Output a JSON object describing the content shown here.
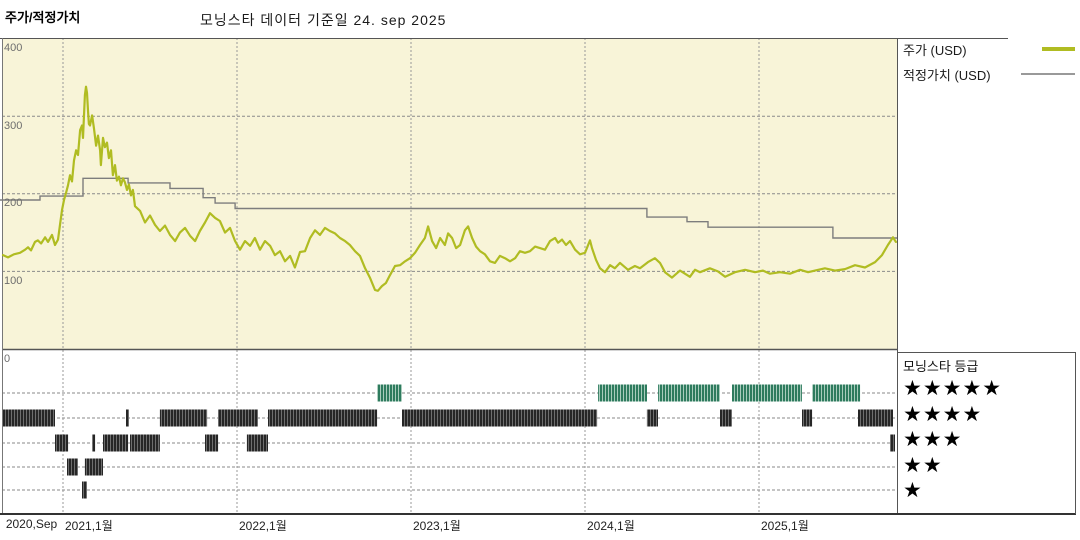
{
  "header": {
    "section_label": "주가/적정가치",
    "title": "모닝스타 데이터 기준일 24. sep 2025"
  },
  "legend": {
    "price_label": "주가 (USD)",
    "fair_value_label": "적정가치 (USD)"
  },
  "rating_legend": {
    "title": "모닝스타 등급",
    "rows": [
      {
        "stars_text": "★★★★★",
        "value": 5
      },
      {
        "stars_text": "★★★★",
        "value": 4
      },
      {
        "stars_text": "★★★",
        "value": 3
      },
      {
        "stars_text": "★★",
        "value": 2
      },
      {
        "stars_text": "★",
        "value": 1
      }
    ]
  },
  "colors": {
    "chart_bg": "#f8f4d8",
    "price": "#b0bc22",
    "fair_value": "#7d7d7d",
    "rating_green": "#2e7b5e",
    "rating_green_stripe": "#a9ccbc",
    "rating_dark": "#262626",
    "rating_dark_stripe": "#6e6e6e",
    "grid": "#999999",
    "border": "#555555"
  },
  "chart_data": {
    "type": "line",
    "title": "모닝스타 데이터 기준일 24. sep 2025",
    "ylabel": "USD",
    "x_axis": {
      "range": [
        2020.64,
        2025.8
      ],
      "ticks": [
        {
          "t": 2020.66,
          "label": "2020,Sep",
          "grid": false
        },
        {
          "t": 2021,
          "label": "2021,1월",
          "grid": true
        },
        {
          "t": 2022,
          "label": "2022,1월",
          "grid": true
        },
        {
          "t": 2023,
          "label": "2023,1월",
          "grid": true
        },
        {
          "t": 2024,
          "label": "2024,1월",
          "grid": true
        },
        {
          "t": 2025,
          "label": "2025,1월",
          "grid": true
        }
      ]
    },
    "y_axis": {
      "range": [
        0,
        400
      ],
      "ticks": [
        400,
        300,
        200,
        100,
        0
      ]
    },
    "series": [
      {
        "name": "주가 (USD)",
        "type": "line",
        "points": [
          [
            2020.655,
            121
          ],
          [
            2020.684,
            118
          ],
          [
            2020.718,
            122
          ],
          [
            2020.753,
            124
          ],
          [
            2020.782,
            128
          ],
          [
            2020.799,
            131
          ],
          [
            2020.816,
            127
          ],
          [
            2020.839,
            138
          ],
          [
            2020.856,
            140
          ],
          [
            2020.874,
            136
          ],
          [
            2020.897,
            144
          ],
          [
            2020.914,
            138
          ],
          [
            2020.937,
            147
          ],
          [
            2020.954,
            134
          ],
          [
            2020.971,
            141
          ],
          [
            2020.983,
            160
          ],
          [
            2020.994,
            179
          ],
          [
            2021.006,
            192
          ],
          [
            2021.017,
            201
          ],
          [
            2021.029,
            211
          ],
          [
            2021.04,
            224
          ],
          [
            2021.052,
            216
          ],
          [
            2021.063,
            243
          ],
          [
            2021.075,
            256
          ],
          [
            2021.086,
            250
          ],
          [
            2021.098,
            282
          ],
          [
            2021.109,
            288
          ],
          [
            2021.115,
            272
          ],
          [
            2021.126,
            327
          ],
          [
            2021.132,
            338
          ],
          [
            2021.138,
            330
          ],
          [
            2021.144,
            305
          ],
          [
            2021.149,
            290
          ],
          [
            2021.155,
            288
          ],
          [
            2021.167,
            301
          ],
          [
            2021.178,
            284
          ],
          [
            2021.19,
            262
          ],
          [
            2021.201,
            275
          ],
          [
            2021.213,
            256
          ],
          [
            2021.218,
            237
          ],
          [
            2021.23,
            272
          ],
          [
            2021.241,
            260
          ],
          [
            2021.253,
            266
          ],
          [
            2021.264,
            246
          ],
          [
            2021.276,
            256
          ],
          [
            2021.287,
            224
          ],
          [
            2021.299,
            237
          ],
          [
            2021.31,
            217
          ],
          [
            2021.322,
            222
          ],
          [
            2021.333,
            211
          ],
          [
            2021.345,
            220
          ],
          [
            2021.356,
            215
          ],
          [
            2021.368,
            205
          ],
          [
            2021.379,
            212
          ],
          [
            2021.391,
            198
          ],
          [
            2021.402,
            205
          ],
          [
            2021.414,
            184
          ],
          [
            2021.443,
            178
          ],
          [
            2021.471,
            163
          ],
          [
            2021.5,
            172
          ],
          [
            2021.529,
            160
          ],
          [
            2021.557,
            152
          ],
          [
            2021.586,
            159
          ],
          [
            2021.615,
            147
          ],
          [
            2021.644,
            139
          ],
          [
            2021.672,
            150
          ],
          [
            2021.701,
            156
          ],
          [
            2021.73,
            146
          ],
          [
            2021.759,
            139
          ],
          [
            2021.787,
            152
          ],
          [
            2021.816,
            163
          ],
          [
            2021.845,
            175
          ],
          [
            2021.874,
            169
          ],
          [
            2021.902,
            165
          ],
          [
            2021.931,
            150
          ],
          [
            2021.96,
            156
          ],
          [
            2021.989,
            139
          ],
          [
            2022.017,
            128
          ],
          [
            2022.046,
            139
          ],
          [
            2022.075,
            133
          ],
          [
            2022.103,
            143
          ],
          [
            2022.132,
            128
          ],
          [
            2022.161,
            139
          ],
          [
            2022.19,
            133
          ],
          [
            2022.218,
            121
          ],
          [
            2022.247,
            126
          ],
          [
            2022.276,
            113
          ],
          [
            2022.305,
            120
          ],
          [
            2022.333,
            105
          ],
          [
            2022.362,
            125
          ],
          [
            2022.391,
            126
          ],
          [
            2022.42,
            143
          ],
          [
            2022.448,
            153
          ],
          [
            2022.477,
            147
          ],
          [
            2022.506,
            156
          ],
          [
            2022.534,
            152
          ],
          [
            2022.563,
            149
          ],
          [
            2022.592,
            143
          ],
          [
            2022.621,
            139
          ],
          [
            2022.649,
            134
          ],
          [
            2022.678,
            126
          ],
          [
            2022.707,
            120
          ],
          [
            2022.736,
            104
          ],
          [
            2022.764,
            92
          ],
          [
            2022.793,
            76
          ],
          [
            2022.81,
            75
          ],
          [
            2022.833,
            81
          ],
          [
            2022.856,
            85
          ],
          [
            2022.879,
            95
          ],
          [
            2022.908,
            107
          ],
          [
            2022.937,
            108
          ],
          [
            2022.966,
            113
          ],
          [
            2022.994,
            117
          ],
          [
            2023.023,
            124
          ],
          [
            2023.052,
            134
          ],
          [
            2023.08,
            143
          ],
          [
            2023.098,
            158
          ],
          [
            2023.121,
            139
          ],
          [
            2023.144,
            130
          ],
          [
            2023.167,
            143
          ],
          [
            2023.195,
            134
          ],
          [
            2023.213,
            149
          ],
          [
            2023.236,
            143
          ],
          [
            2023.259,
            130
          ],
          [
            2023.282,
            134
          ],
          [
            2023.31,
            153
          ],
          [
            2023.328,
            158
          ],
          [
            2023.351,
            143
          ],
          [
            2023.374,
            132
          ],
          [
            2023.397,
            126
          ],
          [
            2023.425,
            122
          ],
          [
            2023.454,
            113
          ],
          [
            2023.483,
            111
          ],
          [
            2023.511,
            120
          ],
          [
            2023.54,
            117
          ],
          [
            2023.569,
            113
          ],
          [
            2023.598,
            117
          ],
          [
            2023.626,
            126
          ],
          [
            2023.655,
            124
          ],
          [
            2023.684,
            126
          ],
          [
            2023.713,
            132
          ],
          [
            2023.741,
            130
          ],
          [
            2023.77,
            128
          ],
          [
            2023.799,
            139
          ],
          [
            2023.828,
            143
          ],
          [
            2023.845,
            137
          ],
          [
            2023.868,
            141
          ],
          [
            2023.891,
            134
          ],
          [
            2023.914,
            139
          ],
          [
            2023.943,
            128
          ],
          [
            2023.971,
            122
          ],
          [
            2024,
            124
          ],
          [
            2024.029,
            140
          ],
          [
            2024.04,
            130
          ],
          [
            2024.063,
            115
          ],
          [
            2024.086,
            104
          ],
          [
            2024.115,
            99
          ],
          [
            2024.144,
            108
          ],
          [
            2024.172,
            104
          ],
          [
            2024.201,
            111
          ],
          [
            2024.247,
            102
          ],
          [
            2024.287,
            107
          ],
          [
            2024.316,
            104
          ],
          [
            2024.362,
            112
          ],
          [
            2024.402,
            117
          ],
          [
            2024.431,
            111
          ],
          [
            2024.46,
            99
          ],
          [
            2024.5,
            92
          ],
          [
            2024.546,
            101
          ],
          [
            2024.603,
            93
          ],
          [
            2024.632,
            102
          ],
          [
            2024.661,
            99
          ],
          [
            2024.718,
            104
          ],
          [
            2024.764,
            100
          ],
          [
            2024.805,
            93
          ],
          [
            2024.862,
            99
          ],
          [
            2024.92,
            102
          ],
          [
            2024.977,
            99
          ],
          [
            2025.023,
            101
          ],
          [
            2025.063,
            97
          ],
          [
            2025.121,
            99
          ],
          [
            2025.178,
            97
          ],
          [
            2025.236,
            102
          ],
          [
            2025.282,
            99
          ],
          [
            2025.322,
            101
          ],
          [
            2025.379,
            104
          ],
          [
            2025.437,
            101
          ],
          [
            2025.494,
            103
          ],
          [
            2025.552,
            108
          ],
          [
            2025.609,
            105
          ],
          [
            2025.667,
            112
          ],
          [
            2025.707,
            121
          ],
          [
            2025.741,
            134
          ],
          [
            2025.77,
            144
          ],
          [
            2025.787,
            138
          ]
        ]
      },
      {
        "name": "적정가치 (USD)",
        "type": "step",
        "segments": [
          [
            2020.638,
            2020.868,
            192
          ],
          [
            2020.868,
            2021.115,
            197
          ],
          [
            2021.115,
            2021.374,
            220
          ],
          [
            2021.374,
            2021.615,
            214
          ],
          [
            2021.615,
            2021.805,
            207
          ],
          [
            2021.805,
            2021.874,
            195
          ],
          [
            2021.874,
            2021.989,
            188
          ],
          [
            2021.989,
            2024.356,
            181
          ],
          [
            2024.356,
            2024.586,
            170
          ],
          [
            2024.586,
            2024.707,
            164
          ],
          [
            2024.707,
            2025.425,
            157
          ],
          [
            2025.425,
            2025.793,
            143
          ]
        ]
      }
    ],
    "rating_timeline": {
      "title": "모닝스타 등급",
      "rows": [
        {
          "stars": 5,
          "style": "green",
          "segments": [
            [
              2022.805,
              2022.948
            ],
            [
              2024.075,
              2024.356
            ],
            [
              2024.42,
              2024.776
            ],
            [
              2024.845,
              2025.247
            ],
            [
              2025.305,
              2025.581
            ]
          ]
        },
        {
          "stars": 4,
          "style": "dark",
          "segments": [
            [
              2020.655,
              2020.954
            ],
            [
              2021.362,
              2021.379
            ],
            [
              2021.557,
              2021.828
            ],
            [
              2021.891,
              2022.121
            ],
            [
              2022.178,
              2022.805
            ],
            [
              2022.948,
              2024.069
            ],
            [
              2024.356,
              2024.42
            ],
            [
              2024.776,
              2024.845
            ],
            [
              2025.247,
              2025.305
            ],
            [
              2025.569,
              2025.77
            ]
          ]
        },
        {
          "stars": 3,
          "style": "dark",
          "segments": [
            [
              2020.954,
              2021.029
            ],
            [
              2021.167,
              2021.184
            ],
            [
              2021.23,
              2021.374
            ],
            [
              2021.385,
              2021.557
            ],
            [
              2021.816,
              2021.891
            ],
            [
              2022.057,
              2022.178
            ],
            [
              2025.753,
              2025.782
            ]
          ]
        },
        {
          "stars": 2,
          "style": "dark",
          "segments": [
            [
              2021.023,
              2021.086
            ],
            [
              2021.126,
              2021.23
            ]
          ]
        },
        {
          "stars": 1,
          "style": "dark",
          "segments": [
            [
              2021.109,
              2021.138
            ]
          ]
        }
      ]
    }
  }
}
